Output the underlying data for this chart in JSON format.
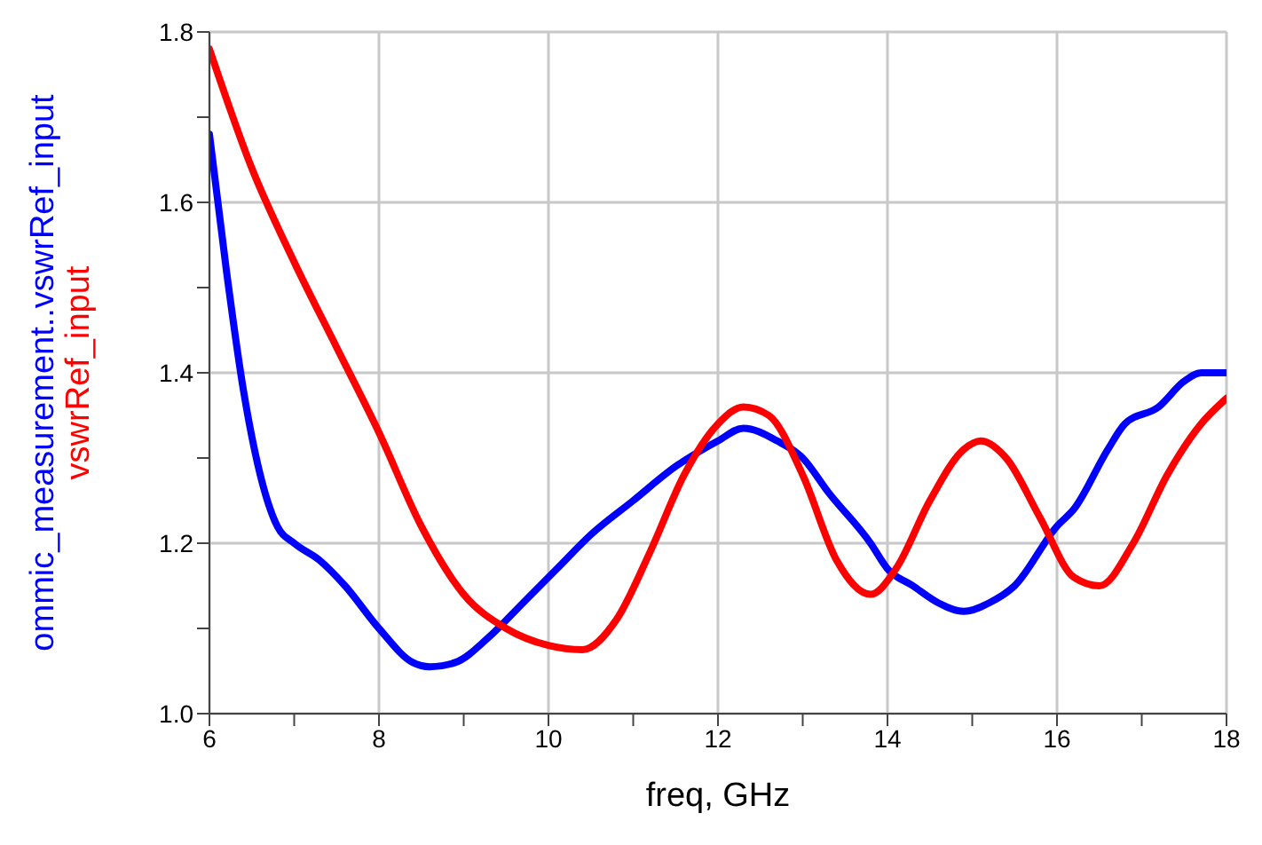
{
  "chart_data": {
    "type": "line",
    "xlabel": "freq, GHz",
    "xlim": [
      6,
      18
    ],
    "xticks": [
      6,
      {
        "value": 7,
        "label": null
      },
      8,
      {
        "value": 9,
        "label": null
      },
      10,
      {
        "value": 11,
        "label": null
      },
      12,
      {
        "value": 13,
        "label": null
      },
      14,
      {
        "value": 15,
        "label": null
      },
      16,
      {
        "value": 17,
        "label": null
      },
      18
    ],
    "ylim": [
      1.0,
      1.8
    ],
    "yticks": [
      {
        "value": 1.0,
        "label": "1.0"
      },
      {
        "value": 1.1,
        "label": null
      },
      {
        "value": 1.2,
        "label": "1.2"
      },
      {
        "value": 1.3,
        "label": null
      },
      {
        "value": 1.4,
        "label": "1.4"
      },
      {
        "value": 1.5,
        "label": null
      },
      {
        "value": 1.6,
        "label": "1.6"
      },
      {
        "value": 1.7,
        "label": null
      },
      {
        "value": 1.8,
        "label": "1.8"
      }
    ],
    "grid": true,
    "marker": "none",
    "line_style": "solid",
    "series": [
      {
        "name": "ommic_measurement..vswrRef_input",
        "color": "#0000ff",
        "x": [
          6,
          6.2,
          6.4,
          6.6,
          6.8,
          7,
          7.3,
          7.6,
          8,
          8.4,
          8.6,
          8.9,
          9.3,
          9.7,
          10.1,
          10.5,
          11,
          11.5,
          12,
          12.3,
          12.7,
          13,
          13.3,
          13.8,
          14,
          14.3,
          14.6,
          14.9,
          15.2,
          15.5,
          16,
          16.2,
          16.6,
          16.8,
          17.2,
          17.5,
          17.7,
          18
        ],
        "values": [
          1.68,
          1.52,
          1.38,
          1.28,
          1.22,
          1.2,
          1.18,
          1.15,
          1.1,
          1.06,
          1.055,
          1.06,
          1.09,
          1.13,
          1.17,
          1.21,
          1.25,
          1.29,
          1.32,
          1.335,
          1.32,
          1.3,
          1.26,
          1.2,
          1.17,
          1.15,
          1.13,
          1.12,
          1.13,
          1.15,
          1.22,
          1.24,
          1.31,
          1.34,
          1.36,
          1.39,
          1.4,
          1.4
        ]
      },
      {
        "name": "vswrRef_input",
        "color": "#ff0000",
        "x": [
          6,
          6.5,
          7,
          7.5,
          8,
          8.5,
          9,
          9.5,
          10,
          10.4,
          10.8,
          11.2,
          11.6,
          12,
          12.3,
          12.6,
          13,
          13.4,
          13.8,
          14.1,
          14.5,
          14.9,
          15.1,
          15.4,
          15.8,
          16.2,
          16.5,
          16.9,
          17.3,
          17.7,
          18
        ],
        "values": [
          1.78,
          1.64,
          1.53,
          1.43,
          1.33,
          1.22,
          1.14,
          1.1,
          1.08,
          1.075,
          1.11,
          1.19,
          1.28,
          1.34,
          1.36,
          1.35,
          1.28,
          1.18,
          1.14,
          1.17,
          1.25,
          1.31,
          1.32,
          1.3,
          1.23,
          1.16,
          1.15,
          1.2,
          1.28,
          1.34,
          1.37
        ]
      }
    ]
  }
}
